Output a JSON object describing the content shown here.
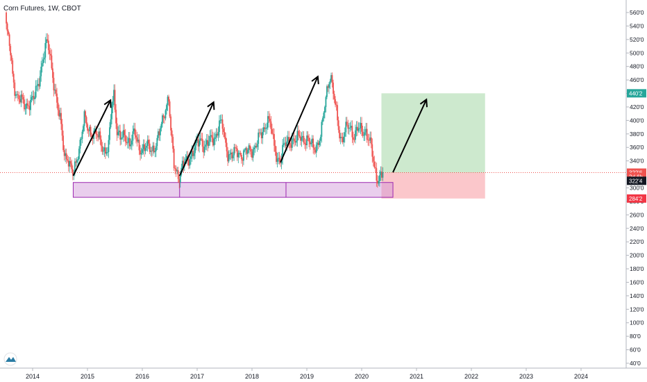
{
  "chart_data": {
    "type": "candlestick",
    "title": "Corn Futures, 1W, CBOT",
    "y_axis": {
      "ticks": [
        "560'0",
        "540'0",
        "520'0",
        "500'0",
        "480'0",
        "460'0",
        "440'0",
        "420'0",
        "400'0",
        "380'0",
        "360'0",
        "340'0",
        "320'0",
        "300'0",
        "280'0",
        "260'0",
        "240'0",
        "220'0",
        "200'0",
        "180'0",
        "160'0",
        "140'0",
        "120'0",
        "100'0",
        "80'0",
        "60'0",
        "40'0"
      ],
      "tick_values": [
        560,
        540,
        520,
        500,
        480,
        460,
        440,
        420,
        400,
        380,
        360,
        340,
        320,
        300,
        280,
        260,
        240,
        220,
        200,
        180,
        160,
        140,
        120,
        100,
        80,
        60,
        40
      ],
      "range": [
        32,
        578
      ],
      "side": "right"
    },
    "x_axis": {
      "ticks": [
        "2014",
        "2015",
        "2016",
        "2017",
        "2018",
        "2019",
        "2020",
        "2021",
        "2022",
        "2023",
        "2024"
      ],
      "tick_values": [
        2014,
        2015,
        2016,
        2017,
        2018,
        2019,
        2020,
        2021,
        2022,
        2023,
        2024
      ],
      "range": [
        2013.5,
        2024.7
      ]
    },
    "price_path": [
      [
        2013.52,
        560
      ],
      [
        2013.55,
        530
      ],
      [
        2013.6,
        510
      ],
      [
        2013.66,
        462
      ],
      [
        2013.72,
        440
      ],
      [
        2013.8,
        430
      ],
      [
        2013.88,
        420
      ],
      [
        2013.96,
        428
      ],
      [
        2014.05,
        432
      ],
      [
        2014.12,
        455
      ],
      [
        2014.2,
        490
      ],
      [
        2014.28,
        515
      ],
      [
        2014.33,
        500
      ],
      [
        2014.4,
        460
      ],
      [
        2014.47,
        420
      ],
      [
        2014.53,
        395
      ],
      [
        2014.6,
        350
      ],
      [
        2014.66,
        345
      ],
      [
        2014.7,
        330
      ],
      [
        2014.76,
        318
      ],
      [
        2014.84,
        352
      ],
      [
        2014.9,
        372
      ],
      [
        2014.96,
        402
      ],
      [
        2015.02,
        390
      ],
      [
        2015.1,
        382
      ],
      [
        2015.18,
        378
      ],
      [
        2015.26,
        370
      ],
      [
        2015.32,
        356
      ],
      [
        2015.4,
        355
      ],
      [
        2015.46,
        420
      ],
      [
        2015.5,
        440
      ],
      [
        2015.56,
        385
      ],
      [
        2015.62,
        372
      ],
      [
        2015.7,
        375
      ],
      [
        2015.8,
        368
      ],
      [
        2015.88,
        380
      ],
      [
        2015.96,
        360
      ],
      [
        2016.04,
        358
      ],
      [
        2016.12,
        360
      ],
      [
        2016.2,
        358
      ],
      [
        2016.28,
        365
      ],
      [
        2016.36,
        390
      ],
      [
        2016.44,
        420
      ],
      [
        2016.5,
        435
      ],
      [
        2016.54,
        380
      ],
      [
        2016.6,
        332
      ],
      [
        2016.66,
        322
      ],
      [
        2016.7,
        318
      ],
      [
        2016.76,
        334
      ],
      [
        2016.84,
        340
      ],
      [
        2016.92,
        352
      ],
      [
        2017.0,
        360
      ],
      [
        2017.08,
        372
      ],
      [
        2017.16,
        362
      ],
      [
        2017.24,
        368
      ],
      [
        2017.3,
        372
      ],
      [
        2017.36,
        378
      ],
      [
        2017.42,
        395
      ],
      [
        2017.48,
        392
      ],
      [
        2017.52,
        370
      ],
      [
        2017.58,
        352
      ],
      [
        2017.66,
        348
      ],
      [
        2017.74,
        354
      ],
      [
        2017.82,
        350
      ],
      [
        2017.9,
        352
      ],
      [
        2017.98,
        355
      ],
      [
        2018.06,
        360
      ],
      [
        2018.14,
        372
      ],
      [
        2018.2,
        380
      ],
      [
        2018.26,
        392
      ],
      [
        2018.3,
        405
      ],
      [
        2018.36,
        392
      ],
      [
        2018.42,
        360
      ],
      [
        2018.48,
        345
      ],
      [
        2018.54,
        342
      ],
      [
        2018.6,
        360
      ],
      [
        2018.66,
        368
      ],
      [
        2018.74,
        372
      ],
      [
        2018.82,
        368
      ],
      [
        2018.9,
        378
      ],
      [
        2018.98,
        372
      ],
      [
        2019.06,
        366
      ],
      [
        2019.14,
        362
      ],
      [
        2019.22,
        365
      ],
      [
        2019.28,
        378
      ],
      [
        2019.34,
        420
      ],
      [
        2019.4,
        455
      ],
      [
        2019.45,
        468
      ],
      [
        2019.5,
        440
      ],
      [
        2019.56,
        410
      ],
      [
        2019.62,
        380
      ],
      [
        2019.66,
        372
      ],
      [
        2019.72,
        385
      ],
      [
        2019.8,
        390
      ],
      [
        2019.88,
        378
      ],
      [
        2019.94,
        388
      ],
      [
        2020.02,
        382
      ],
      [
        2020.1,
        385
      ],
      [
        2020.16,
        370
      ],
      [
        2020.2,
        355
      ],
      [
        2020.24,
        332
      ],
      [
        2020.28,
        318
      ],
      [
        2020.32,
        315
      ],
      [
        2020.36,
        320
      ],
      [
        2020.4,
        322
      ]
    ],
    "last_price": "322'6",
    "countdown": "2d 6h",
    "crosshair_price": "322'4",
    "target_price": "440'2",
    "stop_price": "284'2",
    "colors": {
      "up": "#26a69a",
      "down": "#ef5350",
      "target": "#26a69a",
      "stop": "#f23645",
      "support": "#9c27b0"
    },
    "support_zone": {
      "price_top": 308,
      "price_bottom": 286,
      "x_start": 2014.74,
      "x_end": 2020.57,
      "dividers": [
        2016.68,
        2018.62
      ]
    },
    "long_position": {
      "entry": 322.6,
      "target": 440.2,
      "stop": 284.2,
      "x_start": 2020.36,
      "x_end": 2022.25
    },
    "arrows": [
      {
        "from": [
          2014.74,
          318
        ],
        "to": [
          2015.42,
          430
        ]
      },
      {
        "from": [
          2016.68,
          318
        ],
        "to": [
          2017.3,
          427
        ]
      },
      {
        "from": [
          2018.52,
          338
        ],
        "to": [
          2019.2,
          465
        ]
      },
      {
        "from": [
          2020.57,
          323
        ],
        "to": [
          2021.18,
          431
        ]
      }
    ],
    "grid": false,
    "watermark": "tradingview-logo"
  }
}
